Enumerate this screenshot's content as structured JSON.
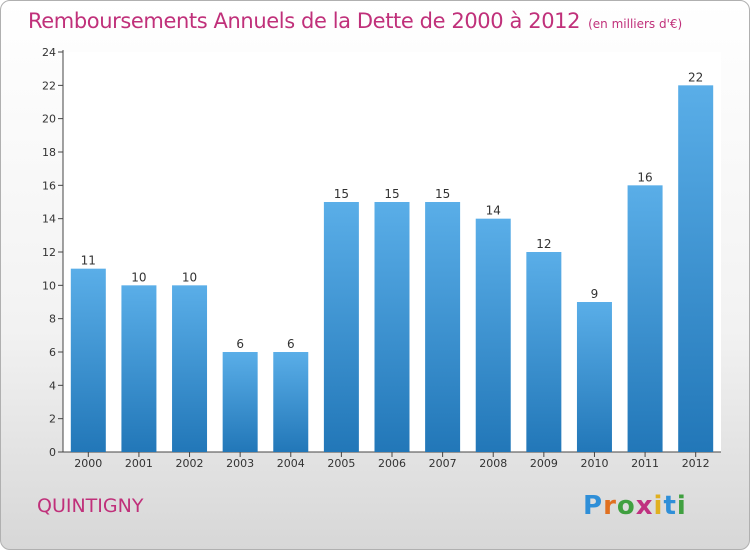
{
  "chart_data": {
    "type": "bar",
    "title": "Remboursements Annuels de la Dette de 2000 à 2012",
    "unit": "(en milliers d'€)",
    "categories": [
      "2000",
      "2001",
      "2002",
      "2003",
      "2004",
      "2005",
      "2006",
      "2007",
      "2008",
      "2009",
      "2010",
      "2011",
      "2012"
    ],
    "values": [
      11,
      10,
      10,
      6,
      6,
      15,
      15,
      15,
      14,
      12,
      9,
      16,
      22
    ],
    "ylim": [
      0,
      24
    ],
    "yticks": [
      0,
      2,
      4,
      6,
      8,
      10,
      12,
      14,
      16,
      18,
      20,
      22,
      24
    ],
    "grid": false,
    "legend": "none",
    "colors": {
      "bar_top": "#5aaee8",
      "bar_bottom": "#2277b8",
      "title": "#c0307a"
    }
  },
  "commune": "QUINTIGNY",
  "logo": {
    "text": "Proxiti",
    "colors": [
      "#2f8fd8",
      "#e07020",
      "#40a040",
      "#c03080",
      "#e0b020",
      "#2f8fd8",
      "#40a040"
    ]
  }
}
